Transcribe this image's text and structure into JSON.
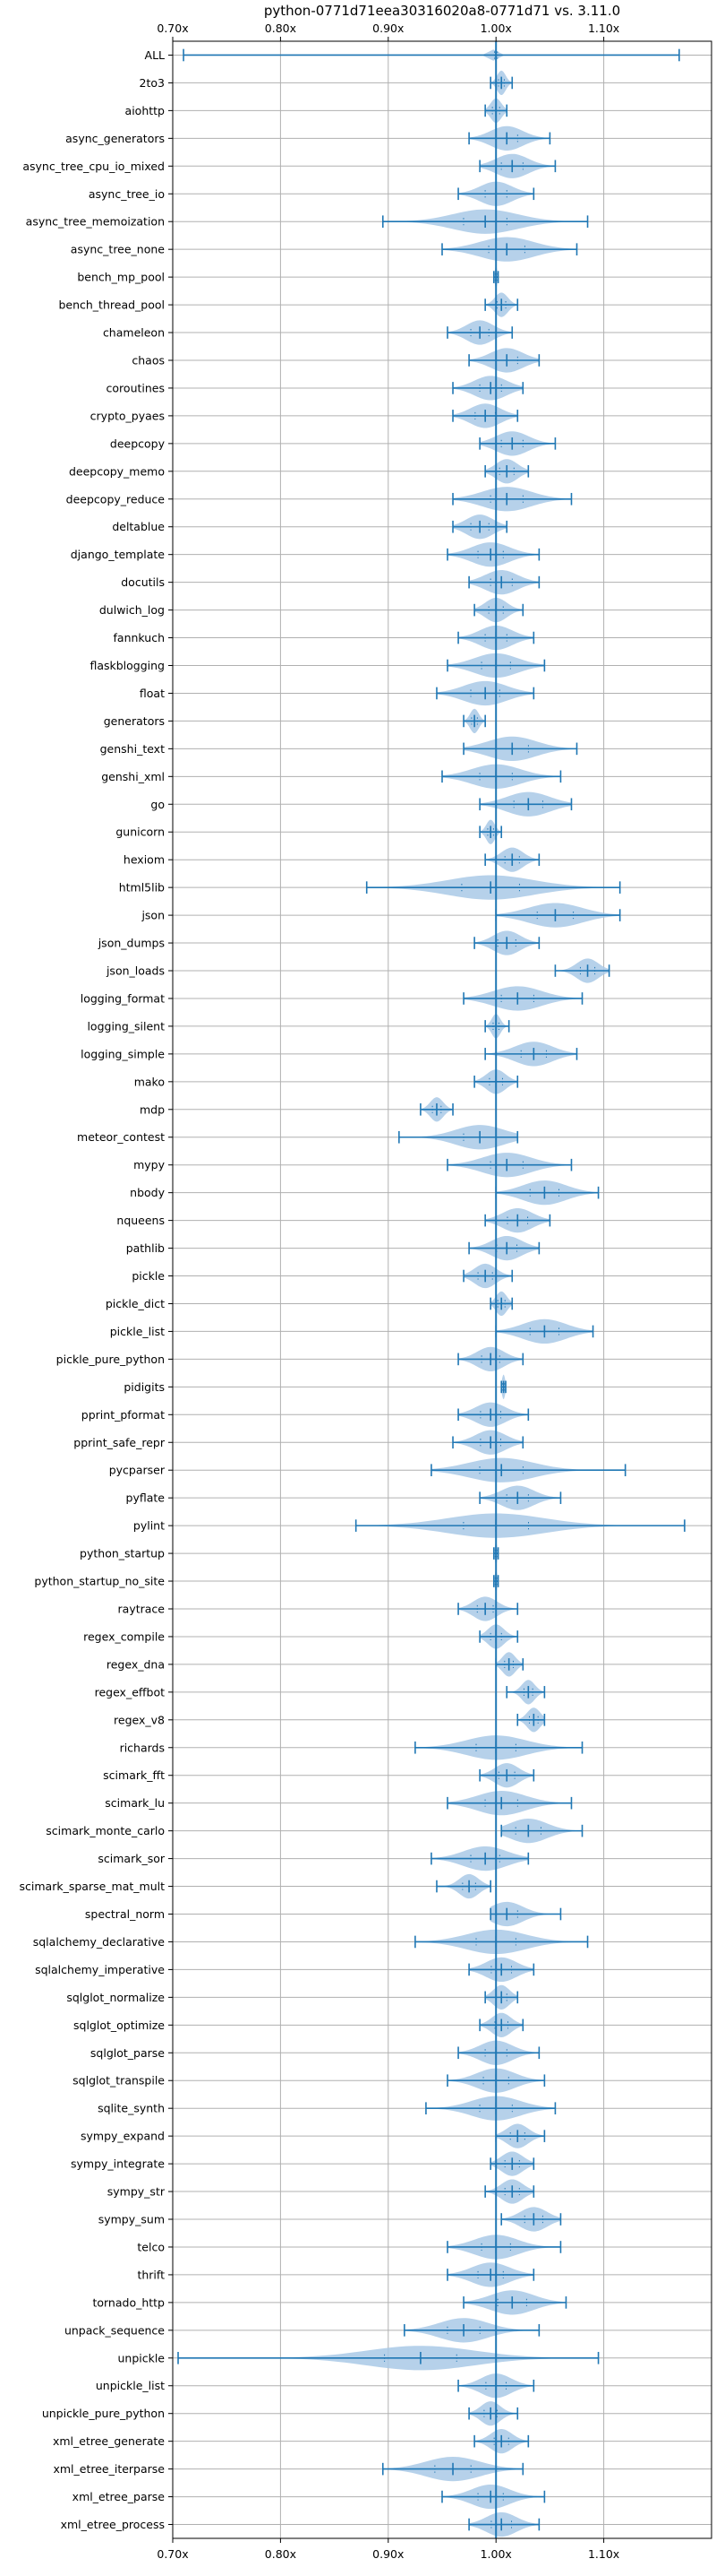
{
  "chart_data": {
    "type": "violin",
    "title": "python-0771d71eea30316020a8-0771d71 vs. 3.11.0",
    "xlim": [
      0.7,
      1.2
    ],
    "xticks": [
      0.7,
      0.8,
      0.9,
      1.0,
      1.1
    ],
    "xtick_labels": [
      "0.70x",
      "0.80x",
      "0.90x",
      "1.00x",
      "1.10x"
    ],
    "grid": true,
    "orientation": "horizontal",
    "reference_line": 1.0,
    "colors": {
      "line": "#1f77b4",
      "fill": "#a9c9e6",
      "grid": "#b0b0b0",
      "axis": "#000000"
    },
    "benchmarks": [
      {
        "name": "ALL",
        "min": 0.71,
        "median": 1.0,
        "max": 1.17,
        "spread": 0.004
      },
      {
        "name": "2to3",
        "min": 0.995,
        "median": 1.005,
        "max": 1.015,
        "spread": 0.008
      },
      {
        "name": "aiohttp",
        "min": 0.99,
        "median": 1.0,
        "max": 1.01,
        "spread": 0.01
      },
      {
        "name": "async_generators",
        "min": 0.975,
        "median": 1.01,
        "max": 1.05,
        "spread": 0.03
      },
      {
        "name": "async_tree_cpu_io_mixed",
        "min": 0.985,
        "median": 1.015,
        "max": 1.055,
        "spread": 0.03
      },
      {
        "name": "async_tree_io",
        "min": 0.965,
        "median": 1.0,
        "max": 1.035,
        "spread": 0.03
      },
      {
        "name": "async_tree_memoization",
        "min": 0.895,
        "median": 0.99,
        "max": 1.085,
        "spread": 0.06
      },
      {
        "name": "async_tree_none",
        "min": 0.95,
        "median": 1.01,
        "max": 1.075,
        "spread": 0.05
      },
      {
        "name": "bench_mp_pool",
        "min": 0.998,
        "median": 1.0,
        "max": 1.002,
        "spread": 0.002
      },
      {
        "name": "bench_thread_pool",
        "min": 0.99,
        "median": 1.005,
        "max": 1.02,
        "spread": 0.012
      },
      {
        "name": "chameleon",
        "min": 0.955,
        "median": 0.985,
        "max": 1.015,
        "spread": 0.025
      },
      {
        "name": "chaos",
        "min": 0.975,
        "median": 1.01,
        "max": 1.04,
        "spread": 0.03
      },
      {
        "name": "coroutines",
        "min": 0.96,
        "median": 0.995,
        "max": 1.025,
        "spread": 0.03
      },
      {
        "name": "crypto_pyaes",
        "min": 0.96,
        "median": 0.99,
        "max": 1.02,
        "spread": 0.028
      },
      {
        "name": "deepcopy",
        "min": 0.985,
        "median": 1.015,
        "max": 1.055,
        "spread": 0.03
      },
      {
        "name": "deepcopy_memo",
        "min": 0.99,
        "median": 1.01,
        "max": 1.03,
        "spread": 0.02
      },
      {
        "name": "deepcopy_reduce",
        "min": 0.96,
        "median": 1.01,
        "max": 1.07,
        "spread": 0.045
      },
      {
        "name": "deltablue",
        "min": 0.96,
        "median": 0.985,
        "max": 1.01,
        "spread": 0.025
      },
      {
        "name": "django_template",
        "min": 0.955,
        "median": 0.995,
        "max": 1.04,
        "spread": 0.035
      },
      {
        "name": "docutils",
        "min": 0.975,
        "median": 1.005,
        "max": 1.04,
        "spread": 0.03
      },
      {
        "name": "dulwich_log",
        "min": 0.98,
        "median": 1.0,
        "max": 1.025,
        "spread": 0.02
      },
      {
        "name": "fannkuch",
        "min": 0.965,
        "median": 1.0,
        "max": 1.035,
        "spread": 0.03
      },
      {
        "name": "flaskblogging",
        "min": 0.955,
        "median": 1.0,
        "max": 1.045,
        "spread": 0.04
      },
      {
        "name": "float",
        "min": 0.945,
        "median": 0.99,
        "max": 1.035,
        "spread": 0.04
      },
      {
        "name": "generators",
        "min": 0.97,
        "median": 0.98,
        "max": 0.99,
        "spread": 0.008
      },
      {
        "name": "genshi_text",
        "min": 0.97,
        "median": 1.015,
        "max": 1.075,
        "spread": 0.045
      },
      {
        "name": "genshi_xml",
        "min": 0.95,
        "median": 1.0,
        "max": 1.06,
        "spread": 0.045
      },
      {
        "name": "go",
        "min": 0.985,
        "median": 1.03,
        "max": 1.07,
        "spread": 0.04
      },
      {
        "name": "gunicorn",
        "min": 0.985,
        "median": 0.995,
        "max": 1.005,
        "spread": 0.008
      },
      {
        "name": "hexiom",
        "min": 0.99,
        "median": 1.015,
        "max": 1.04,
        "spread": 0.02
      },
      {
        "name": "html5lib",
        "min": 0.88,
        "median": 0.995,
        "max": 1.115,
        "spread": 0.08
      },
      {
        "name": "json",
        "min": 1.0,
        "median": 1.055,
        "max": 1.115,
        "spread": 0.05
      },
      {
        "name": "json_dumps",
        "min": 0.98,
        "median": 1.01,
        "max": 1.04,
        "spread": 0.025
      },
      {
        "name": "json_loads",
        "min": 1.055,
        "median": 1.085,
        "max": 1.105,
        "spread": 0.02
      },
      {
        "name": "logging_format",
        "min": 0.97,
        "median": 1.02,
        "max": 1.08,
        "spread": 0.045
      },
      {
        "name": "logging_silent",
        "min": 0.99,
        "median": 1.0,
        "max": 1.012,
        "spread": 0.008
      },
      {
        "name": "logging_simple",
        "min": 0.99,
        "median": 1.035,
        "max": 1.075,
        "spread": 0.035
      },
      {
        "name": "mako",
        "min": 0.98,
        "median": 1.0,
        "max": 1.02,
        "spread": 0.018
      },
      {
        "name": "mdp",
        "min": 0.93,
        "median": 0.945,
        "max": 0.96,
        "spread": 0.012
      },
      {
        "name": "meteor_contest",
        "min": 0.91,
        "median": 0.985,
        "max": 1.02,
        "spread": 0.045
      },
      {
        "name": "mypy",
        "min": 0.955,
        "median": 1.01,
        "max": 1.07,
        "spread": 0.045
      },
      {
        "name": "nbody",
        "min": 1.0,
        "median": 1.045,
        "max": 1.095,
        "spread": 0.04
      },
      {
        "name": "nqueens",
        "min": 0.99,
        "median": 1.02,
        "max": 1.05,
        "spread": 0.028
      },
      {
        "name": "pathlib",
        "min": 0.975,
        "median": 1.01,
        "max": 1.04,
        "spread": 0.028
      },
      {
        "name": "pickle",
        "min": 0.97,
        "median": 0.99,
        "max": 1.015,
        "spread": 0.02
      },
      {
        "name": "pickle_dict",
        "min": 0.995,
        "median": 1.005,
        "max": 1.015,
        "spread": 0.01
      },
      {
        "name": "pickle_list",
        "min": 1.0,
        "median": 1.045,
        "max": 1.09,
        "spread": 0.04
      },
      {
        "name": "pickle_pure_python",
        "min": 0.965,
        "median": 0.995,
        "max": 1.025,
        "spread": 0.025
      },
      {
        "name": "pidigits",
        "min": 1.005,
        "median": 1.007,
        "max": 1.009,
        "spread": 0.003
      },
      {
        "name": "pprint_pformat",
        "min": 0.965,
        "median": 0.995,
        "max": 1.03,
        "spread": 0.028
      },
      {
        "name": "pprint_safe_repr",
        "min": 0.96,
        "median": 0.995,
        "max": 1.025,
        "spread": 0.028
      },
      {
        "name": "pycparser",
        "min": 0.94,
        "median": 1.005,
        "max": 1.12,
        "spread": 0.06
      },
      {
        "name": "pyflate",
        "min": 0.985,
        "median": 1.02,
        "max": 1.06,
        "spread": 0.03
      },
      {
        "name": "pylint",
        "min": 0.87,
        "median": 1.0,
        "max": 1.175,
        "spread": 0.09
      },
      {
        "name": "python_startup",
        "min": 0.998,
        "median": 1.0,
        "max": 1.002,
        "spread": 0.002
      },
      {
        "name": "python_startup_no_site",
        "min": 0.998,
        "median": 1.0,
        "max": 1.002,
        "spread": 0.002
      },
      {
        "name": "raytrace",
        "min": 0.965,
        "median": 0.99,
        "max": 1.02,
        "spread": 0.022
      },
      {
        "name": "regex_compile",
        "min": 0.985,
        "median": 1.0,
        "max": 1.02,
        "spread": 0.015
      },
      {
        "name": "regex_dna",
        "min": 1.0,
        "median": 1.012,
        "max": 1.025,
        "spread": 0.012
      },
      {
        "name": "regex_effbot",
        "min": 1.01,
        "median": 1.03,
        "max": 1.045,
        "spread": 0.012
      },
      {
        "name": "regex_v8",
        "min": 1.02,
        "median": 1.035,
        "max": 1.045,
        "spread": 0.012
      },
      {
        "name": "richards",
        "min": 0.925,
        "median": 1.0,
        "max": 1.08,
        "spread": 0.055
      },
      {
        "name": "scimark_fft",
        "min": 0.985,
        "median": 1.01,
        "max": 1.035,
        "spread": 0.022
      },
      {
        "name": "scimark_lu",
        "min": 0.955,
        "median": 1.005,
        "max": 1.07,
        "spread": 0.045
      },
      {
        "name": "scimark_monte_carlo",
        "min": 1.005,
        "median": 1.03,
        "max": 1.08,
        "spread": 0.035
      },
      {
        "name": "scimark_sor",
        "min": 0.94,
        "median": 0.99,
        "max": 1.03,
        "spread": 0.04
      },
      {
        "name": "scimark_sparse_mat_mult",
        "min": 0.945,
        "median": 0.975,
        "max": 0.995,
        "spread": 0.018
      },
      {
        "name": "spectral_norm",
        "min": 0.995,
        "median": 1.01,
        "max": 1.06,
        "spread": 0.03
      },
      {
        "name": "sqlalchemy_declarative",
        "min": 0.925,
        "median": 1.0,
        "max": 1.085,
        "spread": 0.055
      },
      {
        "name": "sqlalchemy_imperative",
        "min": 0.975,
        "median": 1.005,
        "max": 1.035,
        "spread": 0.028
      },
      {
        "name": "sqlglot_normalize",
        "min": 0.99,
        "median": 1.005,
        "max": 1.02,
        "spread": 0.015
      },
      {
        "name": "sqlglot_optimize",
        "min": 0.985,
        "median": 1.005,
        "max": 1.025,
        "spread": 0.018
      },
      {
        "name": "sqlglot_parse",
        "min": 0.965,
        "median": 1.0,
        "max": 1.04,
        "spread": 0.03
      },
      {
        "name": "sqlglot_transpile",
        "min": 0.955,
        "median": 1.0,
        "max": 1.045,
        "spread": 0.035
      },
      {
        "name": "sqlite_synth",
        "min": 0.935,
        "median": 1.0,
        "max": 1.055,
        "spread": 0.045
      },
      {
        "name": "sympy_expand",
        "min": 1.0,
        "median": 1.02,
        "max": 1.045,
        "spread": 0.02
      },
      {
        "name": "sympy_integrate",
        "min": 0.995,
        "median": 1.015,
        "max": 1.035,
        "spread": 0.02
      },
      {
        "name": "sympy_str",
        "min": 0.99,
        "median": 1.015,
        "max": 1.035,
        "spread": 0.02
      },
      {
        "name": "sympy_sum",
        "min": 1.005,
        "median": 1.035,
        "max": 1.06,
        "spread": 0.025
      },
      {
        "name": "telco",
        "min": 0.955,
        "median": 1.0,
        "max": 1.06,
        "spread": 0.04
      },
      {
        "name": "thrift",
        "min": 0.955,
        "median": 0.995,
        "max": 1.035,
        "spread": 0.035
      },
      {
        "name": "tornado_http",
        "min": 0.97,
        "median": 1.015,
        "max": 1.065,
        "spread": 0.04
      },
      {
        "name": "unpack_sequence",
        "min": 0.915,
        "median": 0.97,
        "max": 1.04,
        "spread": 0.045
      },
      {
        "name": "unpickle",
        "min": 0.705,
        "median": 0.93,
        "max": 1.095,
        "spread": 0.1
      },
      {
        "name": "unpickle_list",
        "min": 0.965,
        "median": 1.0,
        "max": 1.035,
        "spread": 0.028
      },
      {
        "name": "unpickle_pure_python",
        "min": 0.975,
        "median": 0.995,
        "max": 1.02,
        "spread": 0.018
      },
      {
        "name": "xml_etree_generate",
        "min": 0.98,
        "median": 1.005,
        "max": 1.03,
        "spread": 0.02
      },
      {
        "name": "xml_etree_iterparse",
        "min": 0.895,
        "median": 0.96,
        "max": 1.025,
        "spread": 0.05
      },
      {
        "name": "xml_etree_parse",
        "min": 0.95,
        "median": 0.995,
        "max": 1.045,
        "spread": 0.035
      },
      {
        "name": "xml_etree_process",
        "min": 0.975,
        "median": 1.005,
        "max": 1.04,
        "spread": 0.028
      }
    ]
  }
}
